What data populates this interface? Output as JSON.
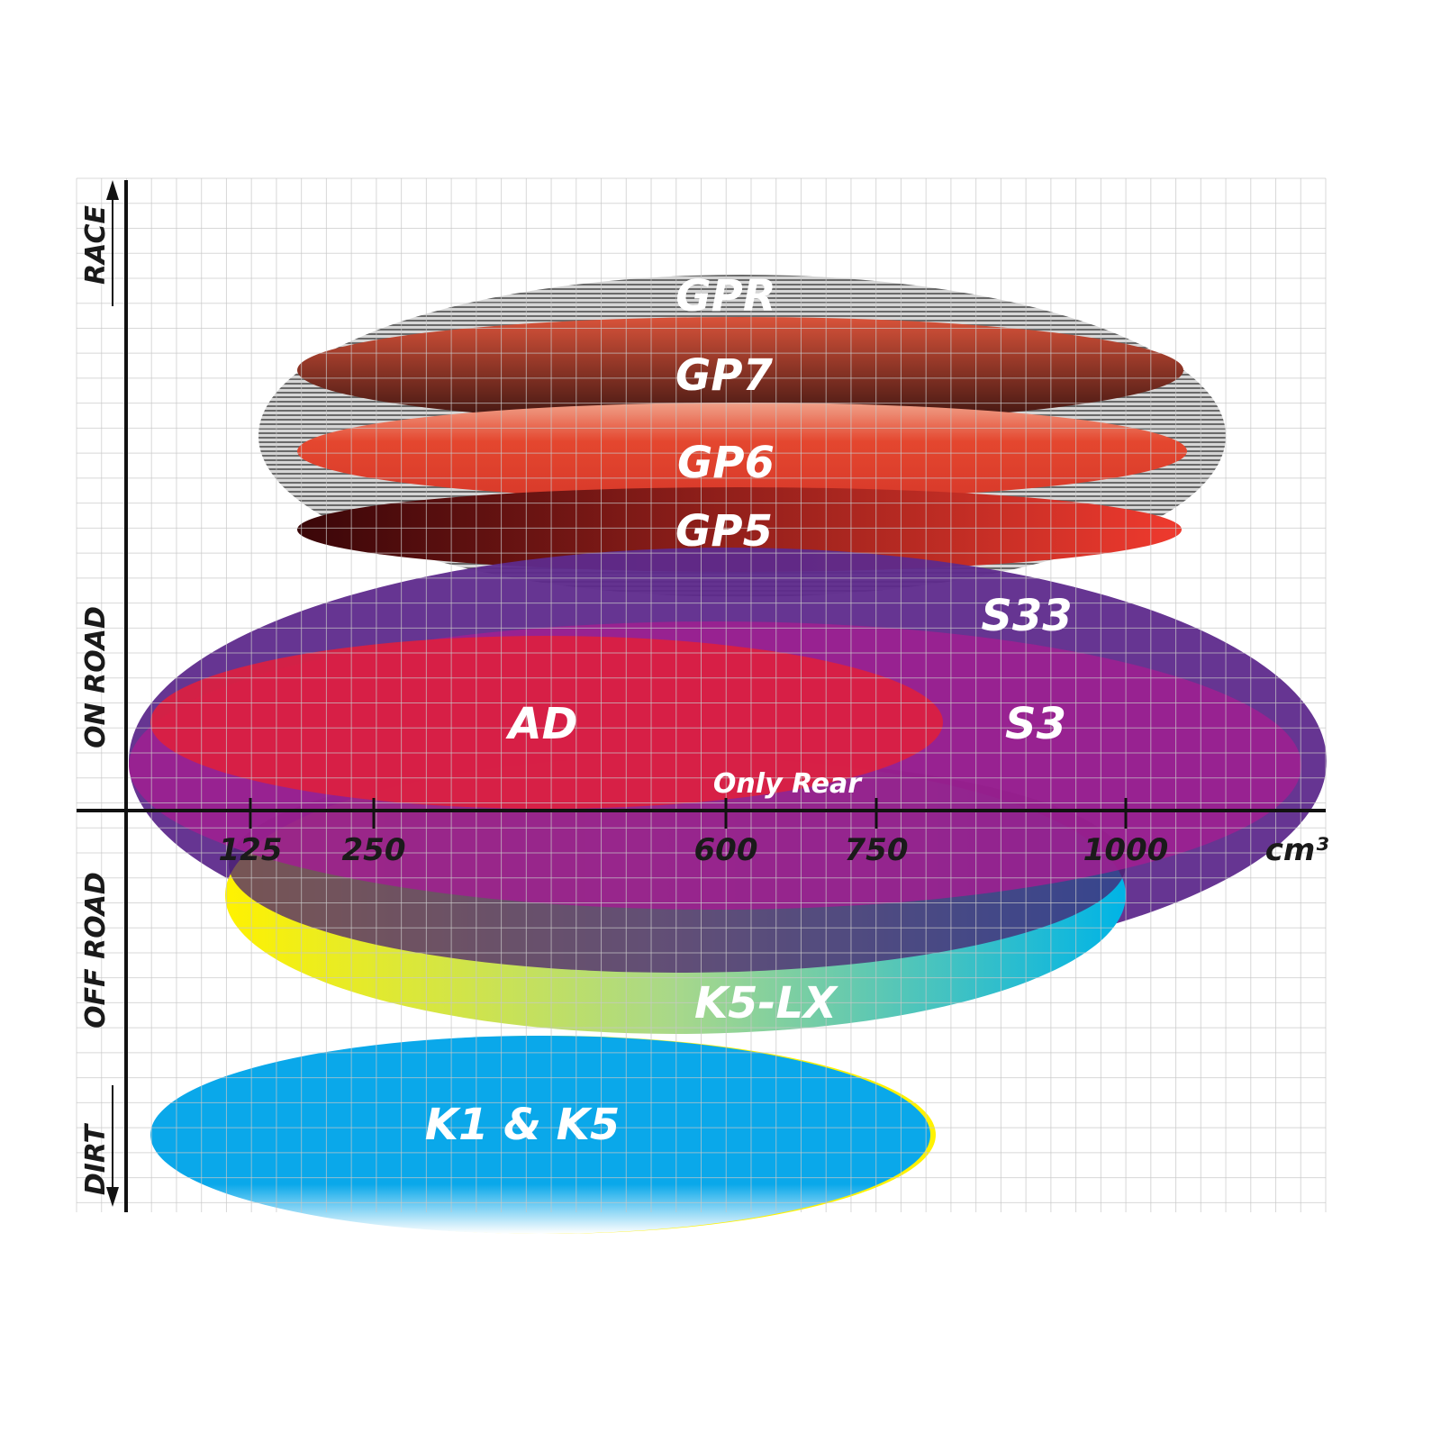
{
  "y_axis": {
    "labels": [
      "RACE",
      "ON ROAD",
      "OFF ROAD",
      "DIRT"
    ]
  },
  "x_axis": {
    "ticks": [
      "125",
      "250",
      "600",
      "750",
      "1000"
    ],
    "unit": "cm³"
  },
  "tires": [
    {
      "name": "GPR",
      "color": "#9a9a9a"
    },
    {
      "name": "GP7",
      "color": "#b8412e"
    },
    {
      "name": "GP6",
      "color": "#e3452f"
    },
    {
      "name": "GP5",
      "color": "#a01a1a"
    },
    {
      "name": "S33",
      "color": "#5e2a8c"
    },
    {
      "name": "S3",
      "color": "#9c1e8e"
    },
    {
      "name": "AD",
      "color": "#d8203e"
    },
    {
      "name": "K5-LX",
      "color": "#1ab8d8"
    },
    {
      "name": "K1 & K5",
      "color": "#0aa8ea"
    }
  ],
  "annotations": {
    "ad_note": "Only Rear"
  }
}
